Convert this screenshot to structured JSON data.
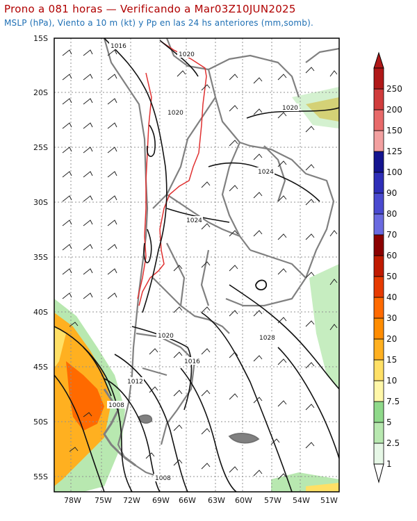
{
  "header": {
    "title": "Prono a 081 horas — Verificando a Mar03Z10JUN2025",
    "subtitle": "MSLP (hPa), Viento a 10 m (kt) y Pp en las 24 hs anteriores (mm,somb)."
  },
  "map": {
    "lat_labels": [
      "15S",
      "20S",
      "25S",
      "30S",
      "35S",
      "40S",
      "45S",
      "50S",
      "55S"
    ],
    "lon_labels": [
      "78W",
      "75W",
      "72W",
      "69W",
      "66W",
      "63W",
      "60W",
      "57W",
      "54W",
      "51W"
    ],
    "isobar_labels": [
      "1016",
      "1020",
      "1020",
      "1020",
      "1024",
      "1024",
      "1020",
      "1016",
      "1028",
      "1012",
      "1008",
      "1008"
    ],
    "colors": {
      "isobar": "#111111",
      "contour_red": "#e03030",
      "border": "#808080",
      "grid": "#909090"
    }
  },
  "colorbar": {
    "levels": [
      "1",
      "2.5",
      "5",
      "7.5",
      "10",
      "15",
      "20",
      "30",
      "40",
      "50",
      "60",
      "70",
      "80",
      "90",
      "100",
      "125",
      "150",
      "200",
      "250"
    ],
    "colors": [
      "#e6f7e6",
      "#b8e8b0",
      "#8fd98a",
      "#fff7a8",
      "#ffe066",
      "#ffb020",
      "#ff8c00",
      "#ff6a00",
      "#e63a00",
      "#c01a00",
      "#8b0000",
      "#6a6ae0",
      "#4a4ad0",
      "#2e2eb8",
      "#14148f",
      "#f2a0a0",
      "#e86a6a",
      "#d03c3c",
      "#b01818"
    ]
  }
}
